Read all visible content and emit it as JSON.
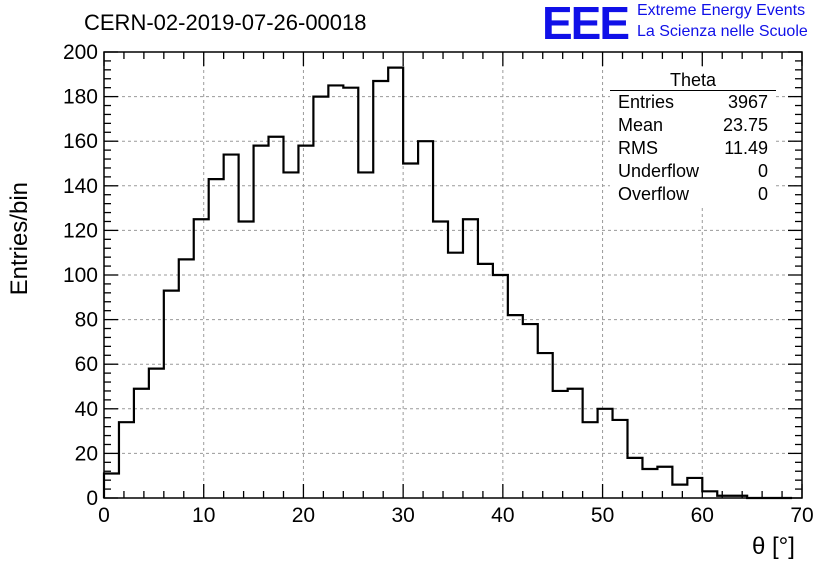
{
  "header": {
    "title": "CERN-02-2019-07-26-00018",
    "logo_text": "EEE",
    "logo_line1": "Extreme Energy Events",
    "logo_line2": "La Scienza nelle Scuole"
  },
  "stats_box": {
    "title": "Theta",
    "rows": [
      {
        "label": "Entries",
        "value": "3967"
      },
      {
        "label": "Mean",
        "value": "23.75"
      },
      {
        "label": "RMS",
        "value": "11.49"
      },
      {
        "label": "Underflow",
        "value": "0"
      },
      {
        "label": "Overflow",
        "value": "0"
      }
    ]
  },
  "colors": {
    "logo": "#1010e8",
    "line": "#000000",
    "grid": "#9a9a9a"
  },
  "chart_data": {
    "type": "bar",
    "style": "step-histogram",
    "xlabel": "θ [°]",
    "ylabel": "Entries/bin",
    "xlim": [
      0,
      70
    ],
    "ylim": [
      0,
      200
    ],
    "grid": true,
    "x_ticks": [
      0,
      10,
      20,
      30,
      40,
      50,
      60,
      70
    ],
    "y_ticks": [
      0,
      20,
      40,
      60,
      80,
      100,
      120,
      140,
      160,
      180,
      200
    ],
    "bin_width": 1.5,
    "x": [
      0,
      1.5,
      3,
      4.5,
      6,
      7.5,
      9,
      10.5,
      12,
      13.5,
      15,
      16.5,
      18,
      19.5,
      21,
      22.5,
      24,
      25.5,
      27,
      28.5,
      30,
      31.5,
      33,
      34.5,
      36,
      37.5,
      39,
      40.5,
      42,
      43.5,
      45,
      46.5,
      48,
      49.5,
      51,
      52.5,
      54,
      55.5,
      57,
      58.5,
      60,
      61.5,
      63,
      64.5,
      66,
      67.5
    ],
    "values": [
      11,
      34,
      49,
      58,
      93,
      107,
      125,
      143,
      154,
      124,
      158,
      162,
      146,
      158,
      180,
      185,
      184,
      146,
      187,
      193,
      150,
      160,
      124,
      110,
      125,
      105,
      100,
      82,
      78,
      65,
      48,
      49,
      34,
      40,
      35,
      18,
      13,
      14,
      6,
      9,
      3,
      1,
      1,
      0,
      0,
      0
    ]
  }
}
